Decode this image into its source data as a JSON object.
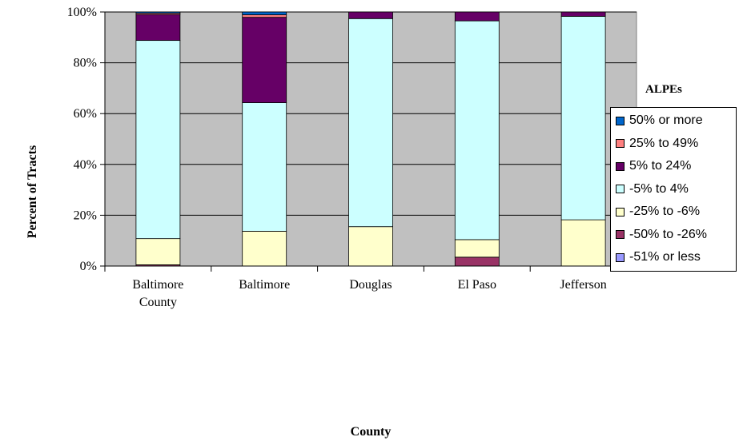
{
  "chart_data": {
    "type": "bar",
    "stacked": true,
    "percent_stacked": true,
    "title": "",
    "xlabel": "County",
    "ylabel": "Percent of Tracts",
    "ylim": [
      0,
      100
    ],
    "y_ticks": [
      "0%",
      "20%",
      "40%",
      "60%",
      "80%",
      "100%"
    ],
    "y_tick_values": [
      0,
      20,
      40,
      60,
      80,
      100
    ],
    "categories": [
      [
        "Baltimore",
        "County"
      ],
      [
        "Baltimore"
      ],
      [
        "Douglas"
      ],
      [
        "El Paso"
      ],
      [
        "Jefferson"
      ]
    ],
    "grid": "horizontal",
    "plot_background": "#c0c0c0",
    "legend_title": "ALPEs",
    "legend_position": "right",
    "series": [
      {
        "name": "-51% or less",
        "color": "#9999ff",
        "values": [
          0.0,
          0.0,
          0.0,
          0.0,
          0.0
        ]
      },
      {
        "name": "-50% to -26%",
        "color": "#993366",
        "values": [
          0.5,
          0.0,
          0.0,
          3.5,
          0.0
        ]
      },
      {
        "name": "-25% to -6%",
        "color": "#ffffcc",
        "values": [
          10.3,
          13.7,
          15.5,
          6.9,
          18.2
        ]
      },
      {
        "name": "-5% to 4%",
        "color": "#ccffff",
        "values": [
          78.0,
          50.6,
          81.9,
          86.1,
          80.1
        ]
      },
      {
        "name": "5% to 24%",
        "color": "#660066",
        "values": [
          10.2,
          33.6,
          2.6,
          3.5,
          1.7
        ]
      },
      {
        "name": "25% to 49%",
        "color": "#ff8080",
        "values": [
          0.5,
          1.0,
          0.0,
          0.0,
          0.0
        ]
      },
      {
        "name": "50% or more",
        "color": "#0066cc",
        "values": [
          0.5,
          1.1,
          0.0,
          0.0,
          0.0
        ]
      }
    ]
  }
}
